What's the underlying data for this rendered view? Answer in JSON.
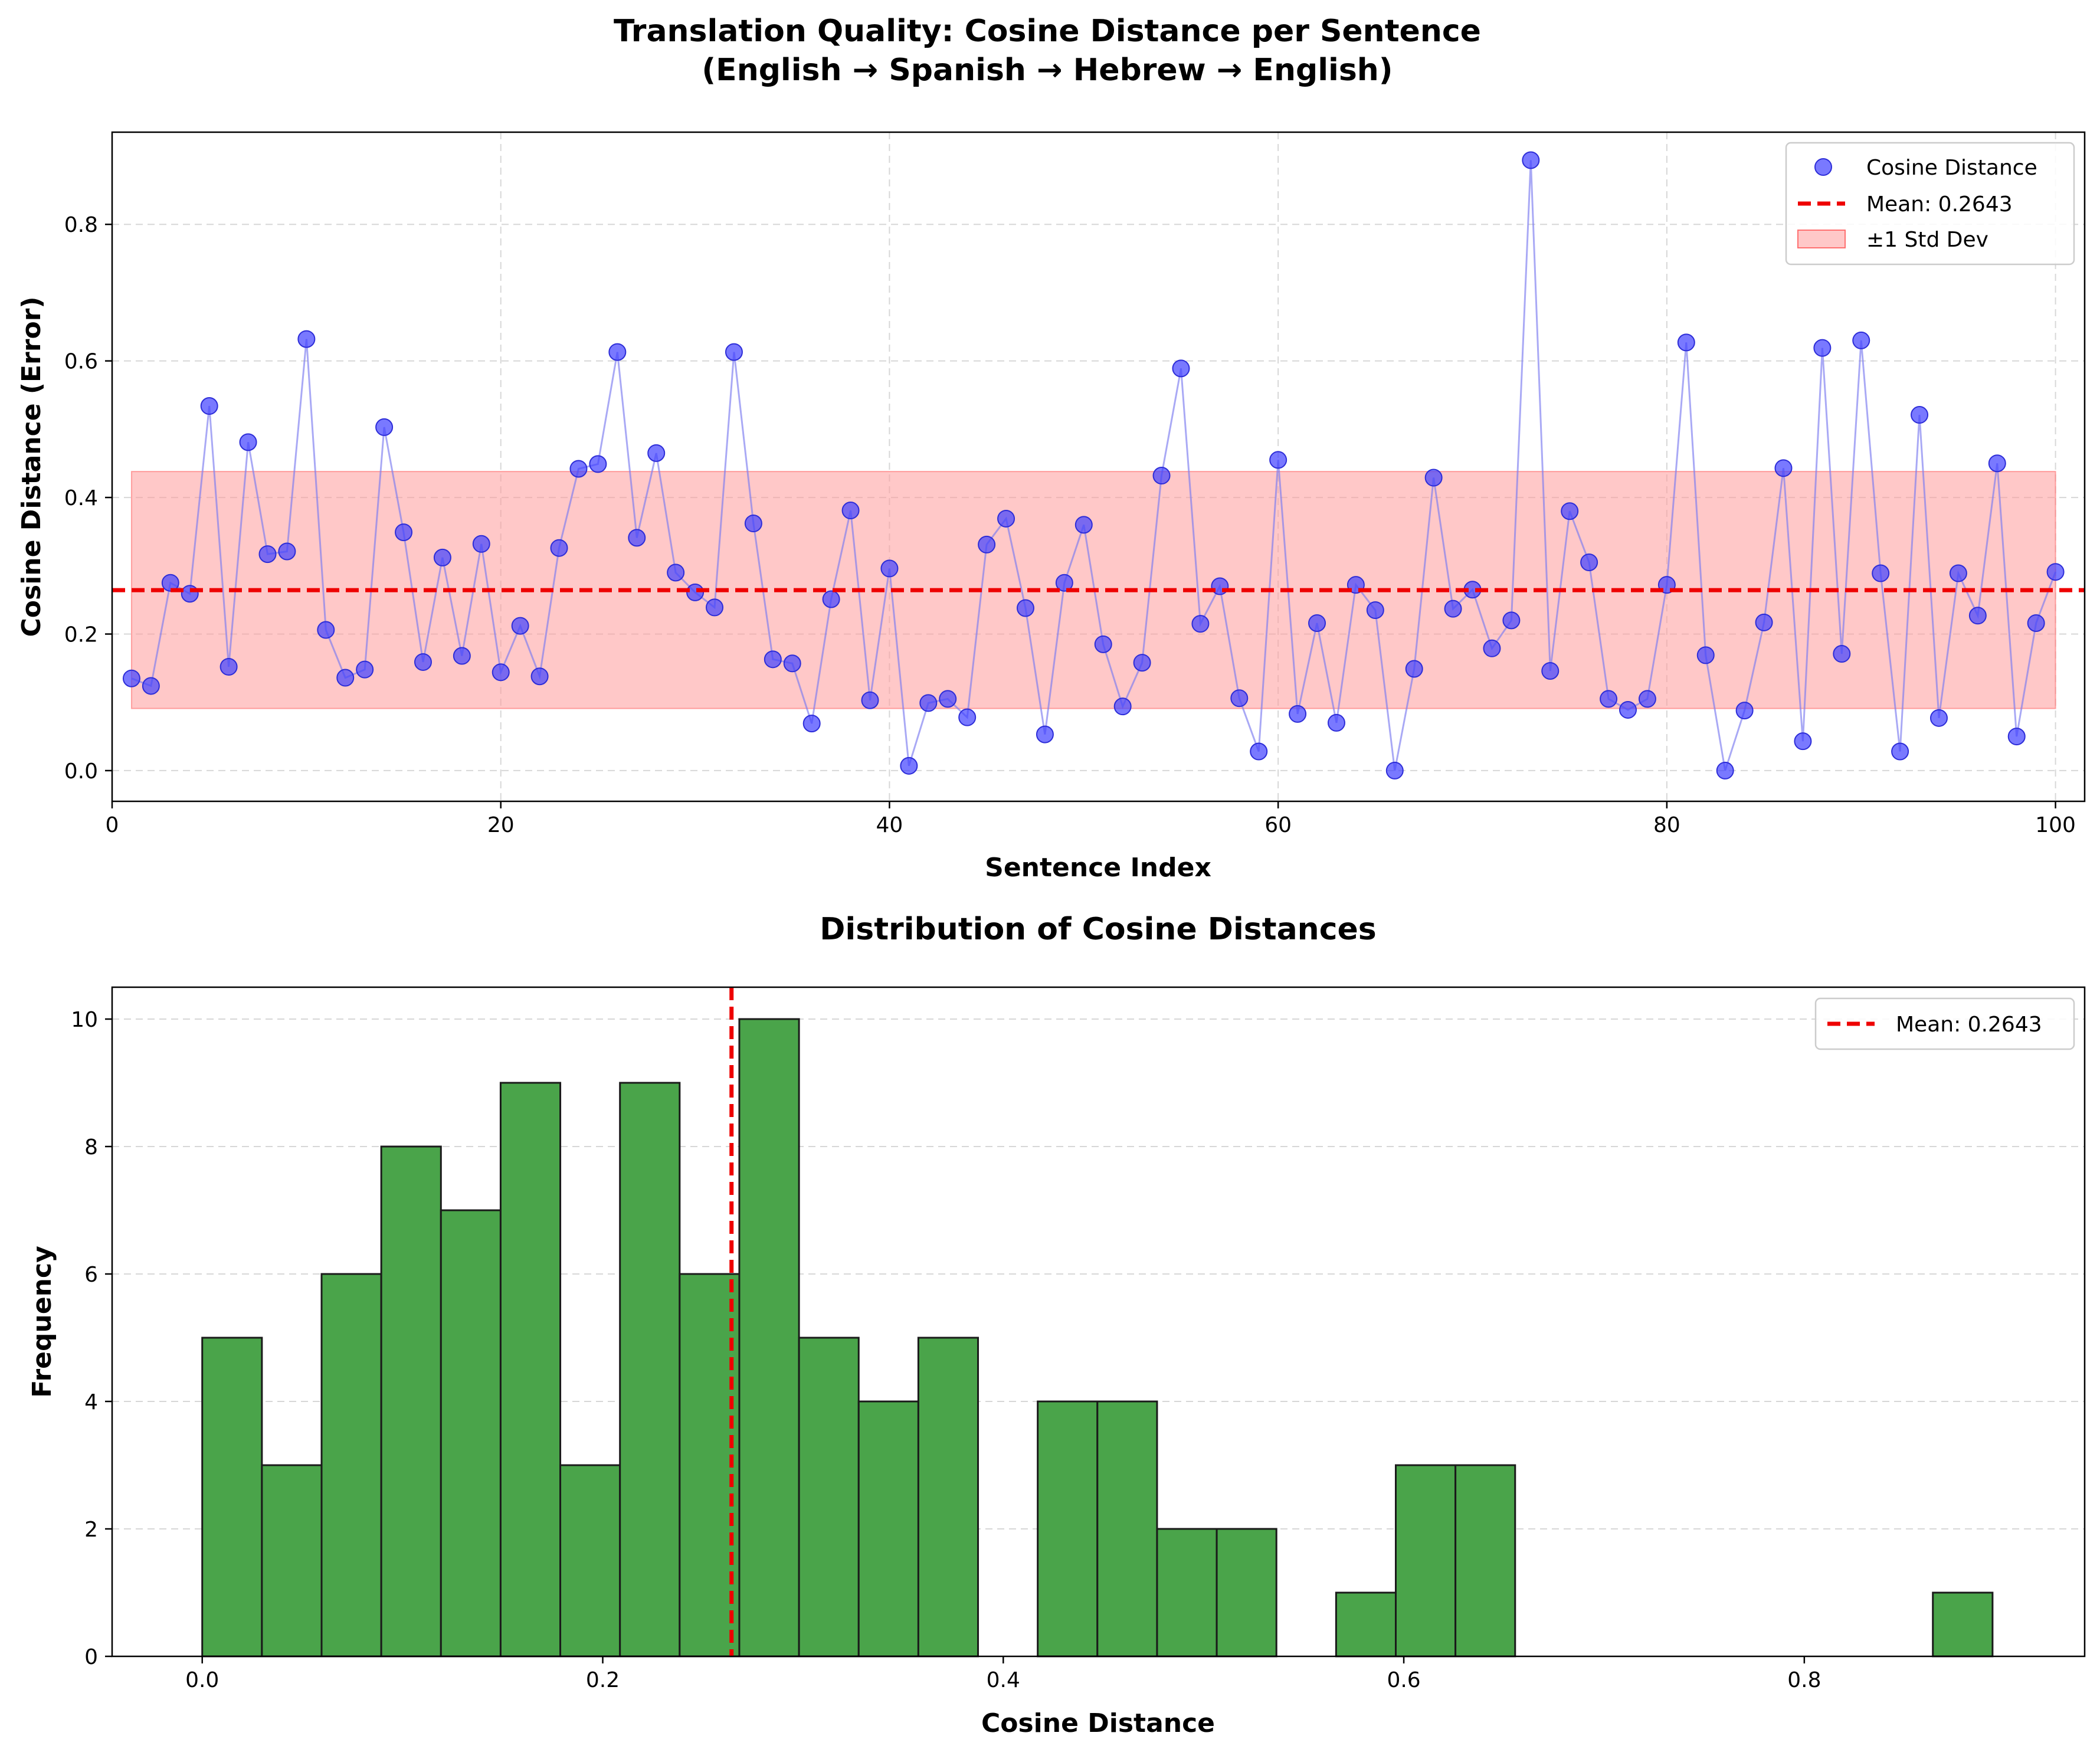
{
  "chart_data": [
    {
      "type": "scatter",
      "title_line1": "Translation Quality: Cosine Distance per Sentence",
      "title_line2": "(English → Spanish → Hebrew → English)",
      "xlabel": "Sentence Index",
      "ylabel": "Cosine Distance (Error)",
      "xlim": [
        0,
        101.5
      ],
      "ylim": [
        -0.045,
        0.935
      ],
      "xticks": [
        0,
        20,
        40,
        60,
        80,
        100
      ],
      "yticks": [
        0.0,
        0.2,
        0.4,
        0.6,
        0.8
      ],
      "xtick_labels": [
        "0",
        "20",
        "40",
        "60",
        "80",
        "100"
      ],
      "ytick_labels": [
        "0.0",
        "0.2",
        "0.4",
        "0.6",
        "0.8"
      ],
      "grid": true,
      "legend_position": "top-right",
      "mean": 0.2643,
      "std_band": [
        0.091,
        0.438
      ],
      "legend": {
        "points": "Cosine Distance",
        "mean": "Mean: 0.2643",
        "band": "±1 Std Dev"
      },
      "colors": {
        "points": "#4040ff",
        "line": "#7b7bef",
        "mean": "#ee0000",
        "band": "#ff9a9a"
      },
      "x": [
        1,
        2,
        3,
        4,
        5,
        6,
        7,
        8,
        9,
        10,
        11,
        12,
        13,
        14,
        15,
        16,
        17,
        18,
        19,
        20,
        21,
        22,
        23,
        24,
        25,
        26,
        27,
        28,
        29,
        30,
        31,
        32,
        33,
        34,
        35,
        36,
        37,
        38,
        39,
        40,
        41,
        42,
        43,
        44,
        45,
        46,
        47,
        48,
        49,
        50,
        51,
        52,
        53,
        54,
        55,
        56,
        57,
        58,
        59,
        60,
        61,
        62,
        63,
        64,
        65,
        66,
        67,
        68,
        69,
        70,
        71,
        72,
        73,
        74,
        75,
        76,
        77,
        78,
        79,
        80,
        81,
        82,
        83,
        84,
        85,
        86,
        87,
        88,
        89,
        90,
        91,
        92,
        93,
        94,
        95,
        96,
        97,
        98,
        99,
        100
      ],
      "y": [
        0.135,
        0.124,
        0.275,
        0.259,
        0.534,
        0.152,
        0.481,
        0.317,
        0.321,
        0.632,
        0.206,
        0.136,
        0.148,
        0.503,
        0.349,
        0.159,
        0.312,
        0.168,
        0.332,
        0.144,
        0.212,
        0.138,
        0.326,
        0.442,
        0.449,
        0.613,
        0.341,
        0.465,
        0.29,
        0.261,
        0.239,
        0.613,
        0.362,
        0.163,
        0.157,
        0.069,
        0.251,
        0.381,
        0.103,
        0.296,
        0.007,
        0.099,
        0.105,
        0.078,
        0.331,
        0.369,
        0.238,
        0.053,
        0.275,
        0.36,
        0.185,
        0.094,
        0.158,
        0.432,
        0.589,
        0.215,
        0.27,
        0.106,
        0.028,
        0.455,
        0.083,
        0.216,
        0.07,
        0.272,
        0.235,
        0.0,
        0.149,
        0.429,
        0.237,
        0.265,
        0.179,
        0.22,
        0.894,
        0.146,
        0.38,
        0.305,
        0.105,
        0.089,
        0.105,
        0.272,
        0.627,
        0.169,
        0.0,
        0.088,
        0.217,
        0.443,
        0.043,
        0.619,
        0.171,
        0.63,
        0.289,
        0.028,
        0.521,
        0.077,
        0.289,
        0.227,
        0.45,
        0.05,
        0.216,
        0.291
      ]
    },
    {
      "type": "bar",
      "title": "Distribution of Cosine Distances",
      "xlabel": "Cosine Distance",
      "ylabel": "Frequency",
      "xlim": [
        -0.045,
        0.94
      ],
      "ylim": [
        0,
        10.5
      ],
      "xticks": [
        0.0,
        0.2,
        0.4,
        0.6,
        0.8
      ],
      "yticks": [
        0,
        2,
        4,
        6,
        8,
        10
      ],
      "xtick_labels": [
        "0.0",
        "0.2",
        "0.4",
        "0.6",
        "0.8"
      ],
      "ytick_labels": [
        "0",
        "2",
        "4",
        "6",
        "8",
        "10"
      ],
      "grid": true,
      "legend_position": "top-right",
      "mean": 0.2643,
      "legend": {
        "mean": "Mean: 0.2643"
      },
      "colors": {
        "bars": "#4aa44a",
        "edge": "#1a1a1a",
        "mean": "#ee0000"
      },
      "bin_start": 0.0,
      "bin_width": 0.0298,
      "counts": [
        5,
        3,
        6,
        8,
        7,
        9,
        3,
        9,
        6,
        10,
        5,
        4,
        5,
        0,
        4,
        4,
        2,
        2,
        0,
        1,
        3,
        3,
        0,
        0,
        0,
        0,
        0,
        0,
        0,
        1
      ]
    }
  ]
}
